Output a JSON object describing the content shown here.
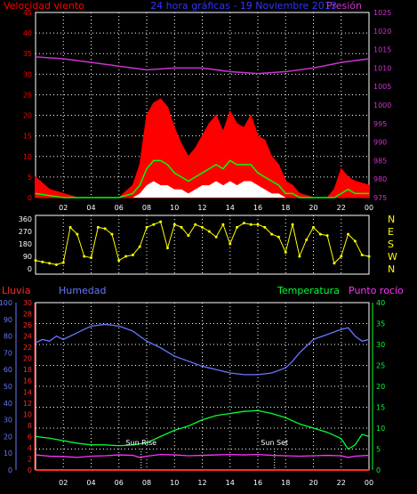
{
  "header": {
    "left": "Velocidad viento",
    "center": "24 hora gráficas - 19 Noviembre 2013",
    "right": "Presión"
  },
  "colors": {
    "background": "#000000",
    "axis": "#ffffff",
    "grid": "#ffffff",
    "wind": "#ff0000",
    "wind_avg": "#00ff00",
    "wind_low": "#ffffff",
    "pressure": "#cc33cc",
    "direction": "#ffff00",
    "rain": "#ff2a2a",
    "humidity": "#6677ff",
    "temperature": "#00ff33",
    "dewpoint": "#ff33ff",
    "header_center": "#3333ff"
  },
  "chart_data": [
    {
      "type": "bar",
      "panel": "wind_pressure",
      "x_tick_labels": [
        "02",
        "04",
        "06",
        "08",
        "10",
        "12",
        "14",
        "16",
        "18",
        "20",
        "22",
        "00"
      ],
      "y_left_ticks": [
        "0",
        "5",
        "10",
        "15",
        "20",
        "25",
        "30",
        "35",
        "40",
        "45"
      ],
      "y_right_ticks": [
        "975",
        "980",
        "985",
        "990",
        "995",
        "1000",
        "1005",
        "1010",
        "1015",
        "1020",
        "1025"
      ],
      "ylim_left": [
        0,
        45
      ],
      "ylim_right": [
        975,
        1025
      ],
      "series": [
        {
          "name": "Velocidad viento",
          "role": "gust",
          "x": [
            0,
            1,
            2,
            3,
            4,
            5,
            6,
            7,
            7.5,
            8,
            8.5,
            9,
            9.5,
            10,
            10.5,
            11,
            11.5,
            12,
            12.5,
            13,
            13.5,
            14,
            14.5,
            15,
            15.5,
            16,
            16.5,
            17,
            17.5,
            18,
            18.5,
            19,
            20,
            21,
            21.5,
            22,
            22.5,
            23,
            24
          ],
          "values": [
            5,
            2,
            1,
            0,
            0,
            0,
            0,
            3,
            8,
            20,
            23,
            24,
            22,
            17,
            13,
            10,
            12,
            15,
            18,
            20,
            16,
            21,
            18,
            17,
            20,
            15,
            14,
            10,
            8,
            4,
            3,
            1,
            0,
            0,
            2,
            7,
            5,
            4,
            3
          ]
        },
        {
          "role": "average",
          "x": [
            0,
            1,
            2,
            3,
            4,
            5,
            6,
            7,
            7.5,
            8,
            8.5,
            9,
            9.5,
            10,
            10.5,
            11,
            11.5,
            12,
            12.5,
            13,
            13.5,
            14,
            14.5,
            15,
            15.5,
            16,
            16.5,
            17,
            17.5,
            18,
            18.5,
            19,
            20,
            21,
            21.5,
            22,
            22.5,
            23,
            24
          ],
          "values": [
            1,
            0.5,
            0,
            0,
            0,
            0,
            0,
            1,
            3,
            7,
            9,
            9,
            8,
            6,
            5,
            4,
            5,
            6,
            7,
            8,
            7,
            9,
            8,
            8,
            8,
            6,
            5,
            4,
            3,
            1,
            1,
            0,
            0,
            0,
            0,
            1,
            2,
            1,
            1
          ]
        },
        {
          "role": "low",
          "x": [
            0,
            1,
            2,
            3,
            4,
            5,
            6,
            7,
            7.5,
            8,
            8.5,
            9,
            9.5,
            10,
            10.5,
            11,
            11.5,
            12,
            12.5,
            13,
            13.5,
            14,
            14.5,
            15,
            15.5,
            16,
            16.5,
            17,
            17.5,
            18,
            18.5,
            19,
            20,
            21,
            21.5,
            22,
            22.5,
            23,
            24
          ],
          "values": [
            0,
            0,
            0,
            0,
            0,
            0,
            0,
            0,
            1,
            3,
            4,
            3,
            3,
            2,
            2,
            1,
            2,
            3,
            3,
            4,
            3,
            4,
            3,
            4,
            4,
            3,
            2,
            1,
            1,
            0,
            0,
            0,
            0,
            0,
            0,
            0,
            0,
            0,
            0
          ]
        },
        {
          "name": "Presión",
          "role": "pressure",
          "x": [
            0,
            2,
            4,
            6,
            8,
            10,
            12,
            14,
            16,
            18,
            20,
            22,
            24
          ],
          "values": [
            1013,
            1012.5,
            1011.5,
            1010.5,
            1009.5,
            1010,
            1010,
            1009,
            1008.5,
            1009,
            1010,
            1011.5,
            1012.5
          ]
        }
      ]
    },
    {
      "type": "scatter",
      "panel": "wind_direction",
      "y_left_ticks": [
        "0",
        "90",
        "180",
        "270",
        "360"
      ],
      "y_right_labels": [
        "N",
        "W",
        "S",
        "E",
        "N"
      ],
      "ylim": [
        0,
        360
      ],
      "series": [
        {
          "role": "direction",
          "x": [
            0,
            0.5,
            1,
            1.5,
            2,
            2.5,
            3,
            3.5,
            4,
            4.5,
            5,
            5.5,
            6,
            6.5,
            7,
            7.5,
            8,
            8.5,
            9,
            9.5,
            10,
            10.5,
            11,
            11.5,
            12,
            12.5,
            13,
            13.5,
            14,
            14.5,
            15,
            15.5,
            16,
            16.5,
            17,
            17.5,
            18,
            18.5,
            19,
            19.5,
            20,
            20.5,
            21,
            21.5,
            22,
            22.5,
            23,
            23.5,
            24
          ],
          "values": [
            60,
            50,
            40,
            30,
            45,
            300,
            250,
            90,
            80,
            300,
            290,
            250,
            60,
            90,
            100,
            160,
            300,
            320,
            340,
            150,
            320,
            300,
            240,
            320,
            300,
            270,
            230,
            320,
            180,
            300,
            330,
            320,
            320,
            300,
            250,
            230,
            120,
            320,
            90,
            210,
            300,
            250,
            240,
            40,
            90,
            250,
            200,
            100,
            90
          ]
        }
      ]
    },
    {
      "type": "line",
      "panel": "rain_humidity_temperature",
      "series_labels": {
        "rain": "Lluvia",
        "humidity": "Humedad",
        "temperature": "Temperatura",
        "dewpoint": "Punto rocío"
      },
      "annotations": [
        {
          "label": "Sun Rise",
          "x": 7.6
        },
        {
          "label": "Sun Set",
          "x": 17.2
        }
      ],
      "x_tick_labels": [
        "02",
        "04",
        "06",
        "08",
        "10",
        "12",
        "14",
        "16",
        "18",
        "20",
        "22",
        "00"
      ],
      "y_rain_ticks": [
        "0",
        "2",
        "4",
        "6",
        "8",
        "10",
        "12",
        "14",
        "16",
        "18",
        "20",
        "22",
        "24",
        "26",
        "28",
        "30"
      ],
      "y_humidity_ticks": [
        "0",
        "10",
        "20",
        "30",
        "40",
        "50",
        "60",
        "70",
        "80",
        "90",
        "100"
      ],
      "y_temp_ticks": [
        "0",
        "5",
        "10",
        "15",
        "20",
        "25",
        "30",
        "35",
        "40"
      ],
      "ylim_humidity": [
        0,
        100
      ],
      "ylim_rain": [
        0,
        30
      ],
      "ylim_temp": [
        0,
        40
      ],
      "series": [
        {
          "role": "humidity",
          "x": [
            0,
            0.5,
            1,
            1.5,
            2,
            3,
            4,
            5,
            6,
            7,
            8,
            9,
            10,
            11,
            12,
            13,
            14,
            15,
            16,
            17,
            18,
            18.5,
            19,
            19.5,
            20,
            21,
            22,
            22.5,
            23,
            23.5,
            24
          ],
          "values": [
            76,
            78,
            77,
            80,
            78,
            82,
            86,
            87,
            86,
            83,
            77,
            73,
            68,
            65,
            62,
            60,
            58,
            57,
            57,
            58,
            61,
            65,
            70,
            74,
            78,
            81,
            84,
            85,
            80,
            77,
            78
          ]
        },
        {
          "role": "temperature",
          "x": [
            0,
            0.5,
            1,
            2,
            3,
            4,
            5,
            6,
            7,
            8,
            9,
            10,
            11,
            12,
            13,
            14,
            15,
            16,
            17,
            18,
            19,
            20,
            21,
            22,
            22.5,
            23,
            23.5,
            24
          ],
          "values": [
            8,
            7.8,
            7.6,
            7,
            6.4,
            6,
            6,
            5.8,
            6,
            6.5,
            8,
            9.5,
            10.5,
            12,
            13,
            13.5,
            14,
            14.2,
            13.5,
            12.5,
            11,
            10,
            9,
            7.5,
            5,
            6,
            8.5,
            8
          ]
        },
        {
          "role": "dewpoint",
          "x": [
            0,
            1,
            2,
            3,
            4,
            5,
            6,
            7,
            7.5,
            8,
            9,
            10,
            11,
            12,
            13,
            14,
            15,
            16,
            17,
            18,
            19,
            20,
            21,
            22,
            22.5,
            23,
            24
          ],
          "values": [
            3.6,
            3.3,
            3.2,
            3,
            3.3,
            3.4,
            3.6,
            3.5,
            3,
            3.3,
            3.7,
            3.6,
            3.4,
            3.5,
            3.6,
            3.7,
            3.6,
            3.7,
            3.5,
            3.4,
            3.3,
            3.4,
            3.5,
            3.4,
            3,
            3.3,
            3.5
          ]
        },
        {
          "role": "rain",
          "x": [
            0,
            24
          ],
          "values": [
            0,
            0
          ]
        }
      ]
    }
  ]
}
